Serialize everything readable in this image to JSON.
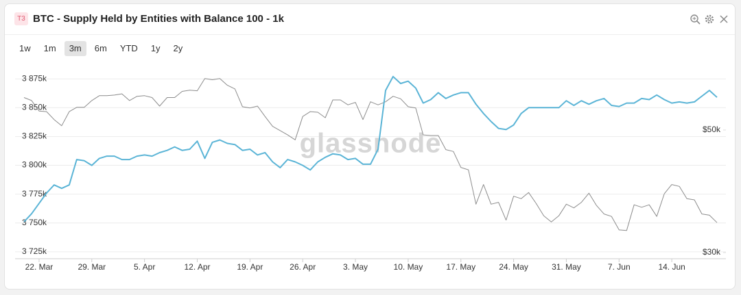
{
  "header": {
    "badge": "T3",
    "title": "BTC - Supply Held by Entities with Balance 100 - 1k"
  },
  "controls": {
    "ranges": [
      "1w",
      "1m",
      "3m",
      "6m",
      "YTD",
      "1y",
      "2y"
    ],
    "active": 2
  },
  "chart_data": {
    "type": "line",
    "watermark": "glassnode",
    "x": [
      "20. Mar",
      "21. Mar",
      "22. Mar",
      "23. Mar",
      "24. Mar",
      "25. Mar",
      "26. Mar",
      "27. Mar",
      "28. Mar",
      "29. Mar",
      "30. Mar",
      "31. Mar",
      "1. Apr",
      "2. Apr",
      "3. Apr",
      "4. Apr",
      "5. Apr",
      "6. Apr",
      "7. Apr",
      "8. Apr",
      "9. Apr",
      "10. Apr",
      "11. Apr",
      "12. Apr",
      "13. Apr",
      "14. Apr",
      "15. Apr",
      "16. Apr",
      "17. Apr",
      "18. Apr",
      "19. Apr",
      "20. Apr",
      "21. Apr",
      "22. Apr",
      "23. Apr",
      "24. Apr",
      "25. Apr",
      "26. Apr",
      "27. Apr",
      "28. Apr",
      "29. Apr",
      "30. Apr",
      "1. May",
      "2. May",
      "3. May",
      "4. May",
      "5. May",
      "6. May",
      "7. May",
      "8. May",
      "9. May",
      "10. May",
      "11. May",
      "12. May",
      "13. May",
      "14. May",
      "15. May",
      "16. May",
      "17. May",
      "18. May",
      "19. May",
      "20. May",
      "21. May",
      "22. May",
      "23. May",
      "24. May",
      "25. May",
      "26. May",
      "27. May",
      "28. May",
      "29. May",
      "30. May",
      "31. May",
      "1. Jun",
      "2. Jun",
      "3. Jun",
      "4. Jun",
      "5. Jun",
      "6. Jun",
      "7. Jun",
      "8. Jun",
      "9. Jun",
      "10. Jun",
      "11. Jun",
      "12. Jun",
      "13. Jun",
      "14. Jun",
      "15. Jun",
      "16. Jun",
      "17. Jun",
      "18. Jun",
      "19. Jun",
      "20. Jun"
    ],
    "xticks": [
      "22. Mar",
      "29. Mar",
      "5. Apr",
      "12. Apr",
      "19. Apr",
      "26. Apr",
      "3. May",
      "10. May",
      "17. May",
      "24. May",
      "31. May",
      "7. Jun",
      "14. Jun"
    ],
    "series": [
      {
        "color": "#5ab4d6",
        "axis": "y",
        "values": [
          3751000,
          3758000,
          3767000,
          3776000,
          3783000,
          3780000,
          3783000,
          3805000,
          3804000,
          3800000,
          3806000,
          3808000,
          3808000,
          3805000,
          3805000,
          3808000,
          3809000,
          3808000,
          3811000,
          3813000,
          3816000,
          3813000,
          3814000,
          3821000,
          3806000,
          3820000,
          3822000,
          3819000,
          3818000,
          3813000,
          3814000,
          3809000,
          3811000,
          3803000,
          3798000,
          3805000,
          3803000,
          3800000,
          3796000,
          3803000,
          3807000,
          3810000,
          3809000,
          3805000,
          3806000,
          3801000,
          3801000,
          3814000,
          3865000,
          3877000,
          3871000,
          3873000,
          3867000,
          3854000,
          3857000,
          3863000,
          3858000,
          3861000,
          3863000,
          3863000,
          3853000,
          3845000,
          3838000,
          3832000,
          3831000,
          3835000,
          3845000,
          3850000,
          3850000,
          3850000,
          3850000,
          3850000,
          3856000,
          3852000,
          3856000,
          3853000,
          3856000,
          3858000,
          3852000,
          3851000,
          3854000,
          3854000,
          3858000,
          3857000,
          3861000,
          3857000,
          3854000,
          3855000,
          3854000,
          3855000,
          3860000,
          3865000,
          3859000
        ]
      },
      {
        "color": "#8c8c8c",
        "axis": "y2",
        "values": [
          55300,
          54800,
          53100,
          53000,
          51700,
          50700,
          53000,
          53700,
          53700,
          54800,
          55600,
          55600,
          55700,
          55900,
          54800,
          55500,
          55600,
          55300,
          53900,
          55300,
          55300,
          56300,
          56500,
          56400,
          58400,
          58200,
          58400,
          57300,
          56700,
          53800,
          53600,
          53900,
          52200,
          50600,
          49900,
          49200,
          48400,
          52200,
          53000,
          52900,
          52000,
          54900,
          54900,
          54100,
          54500,
          51700,
          54600,
          54100,
          54600,
          55500,
          55100,
          53800,
          53600,
          49200,
          49100,
          49100,
          46800,
          46500,
          43900,
          43500,
          37900,
          41100,
          37900,
          38200,
          35300,
          39200,
          38800,
          39800,
          38000,
          36000,
          35000,
          36000,
          37900,
          37300,
          38200,
          39700,
          37700,
          36300,
          35900,
          33700,
          33600,
          37800,
          37400,
          37800,
          35900,
          39600,
          41100,
          40800,
          38800,
          38600,
          36300,
          36100,
          34900
        ]
      }
    ],
    "ylim": [
      3719000,
      3887000
    ],
    "yticks": [
      {
        "value": 3725000,
        "label": "3 725k"
      },
      {
        "value": 3750000,
        "label": "3 750k"
      },
      {
        "value": 3775000,
        "label": "3 775k"
      },
      {
        "value": 3800000,
        "label": "3 800k"
      },
      {
        "value": 3825000,
        "label": "3 825k"
      },
      {
        "value": 3850000,
        "label": "3 850k"
      },
      {
        "value": 3875000,
        "label": "3 875k"
      }
    ],
    "y2lim": [
      29000,
      60600
    ],
    "y2ticks": [
      {
        "value": 30000,
        "label": "$30k"
      },
      {
        "value": 50000,
        "label": "$50k"
      }
    ],
    "grid": true
  }
}
